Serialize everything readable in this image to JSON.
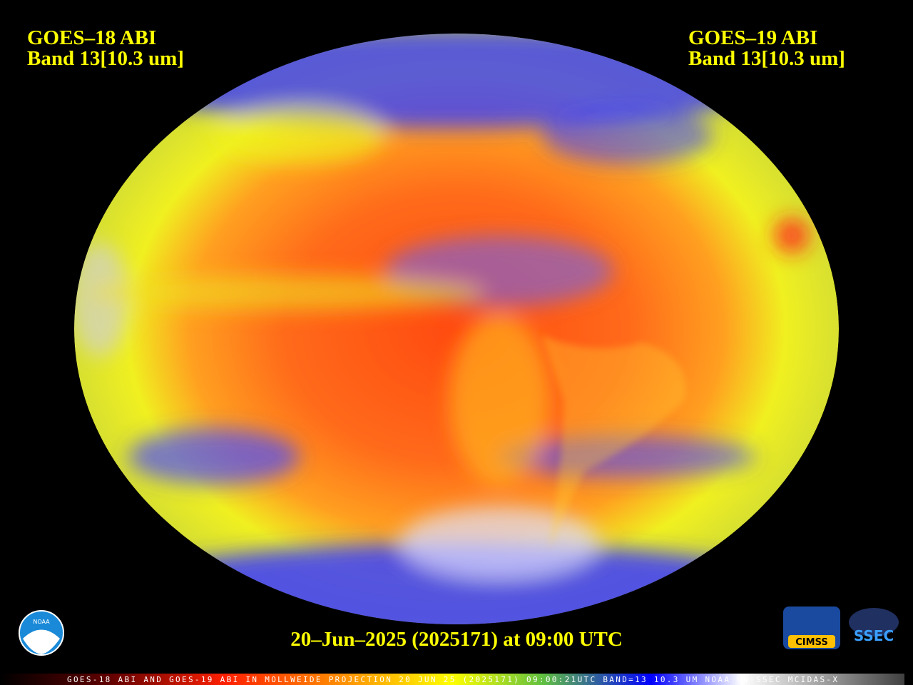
{
  "header": {
    "left": {
      "title": "GOES–18 ABI",
      "band": "Band 13[10.3 um]"
    },
    "right": {
      "title": "GOES–19 ABI",
      "band": "Band 13[10.3 um]"
    }
  },
  "timestamp": "20–Jun–2025 (2025171) at 09:00 UTC",
  "logos": {
    "noaa": "NOAA",
    "cimss": "CIMSS",
    "ssec": "SSEC"
  },
  "footer": "GOES-18 ABI AND GOES-19 ABI IN MOLLWEIDE PROJECTION 20 JUN 25 (2025171) 09:00:21UTC BAND=13 10.3 UM NOAA UW-SSEC MCIDAS-X"
}
